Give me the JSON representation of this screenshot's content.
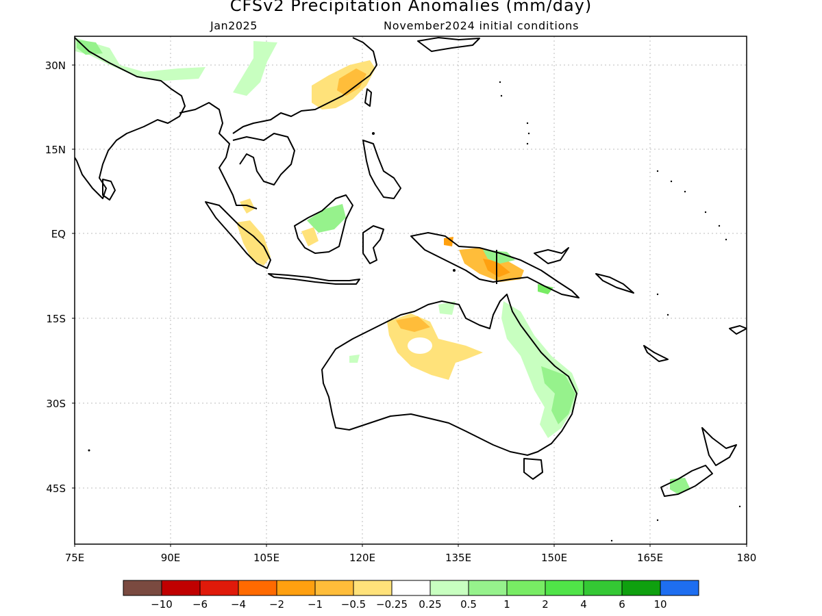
{
  "title": "CFSv2 Precipitation Anomalies (mm/day)",
  "subtitle_left": "Jan2025",
  "subtitle_right": "November2024 initial conditions",
  "lon_ticks": [
    "75E",
    "90E",
    "105E",
    "120E",
    "135E",
    "150E",
    "165E",
    "180"
  ],
  "lat_ticks": [
    "30N",
    "15N",
    "EQ",
    "15S",
    "30S",
    "45S"
  ],
  "colorbar": {
    "colors": [
      "#7a4a40",
      "#c00000",
      "#e01a0a",
      "#ff6a00",
      "#ffa010",
      "#ffbd3a",
      "#ffe27a",
      "#ffffff",
      "#c8ffc0",
      "#96f28c",
      "#78ec64",
      "#50e448",
      "#34c834",
      "#0fa00f",
      "#1e6ef0"
    ],
    "labels": [
      "-10",
      "-6",
      "-4",
      "-2",
      "-1",
      "-0.5",
      "-0.25",
      "0.25",
      "0.5",
      "1",
      "2",
      "4",
      "6",
      "10"
    ]
  },
  "palette": {
    "land_outline": "#000000",
    "grid": "#bbbbbb",
    "dry_light": "#ffe27a",
    "dry_mid": "#ffbd3a",
    "dry_strong": "#ffa010",
    "wet_light": "#c8ffc0",
    "wet_mid": "#96f28c",
    "wet_strong": "#50e448"
  }
}
